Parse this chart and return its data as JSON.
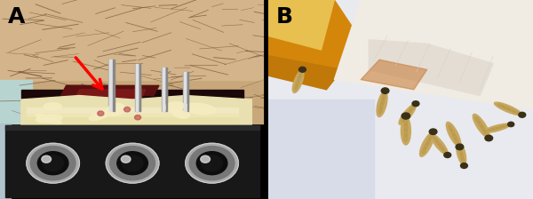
{
  "figsize": [
    6.0,
    2.24
  ],
  "dpi": 100,
  "panel_A": {
    "label": "A",
    "label_color": "#000000",
    "label_fontsize": 18,
    "label_fontweight": "bold"
  },
  "panel_B": {
    "label": "B",
    "label_color": "#000000",
    "label_fontsize": 18,
    "label_fontweight": "bold"
  },
  "background_color": "#000000"
}
